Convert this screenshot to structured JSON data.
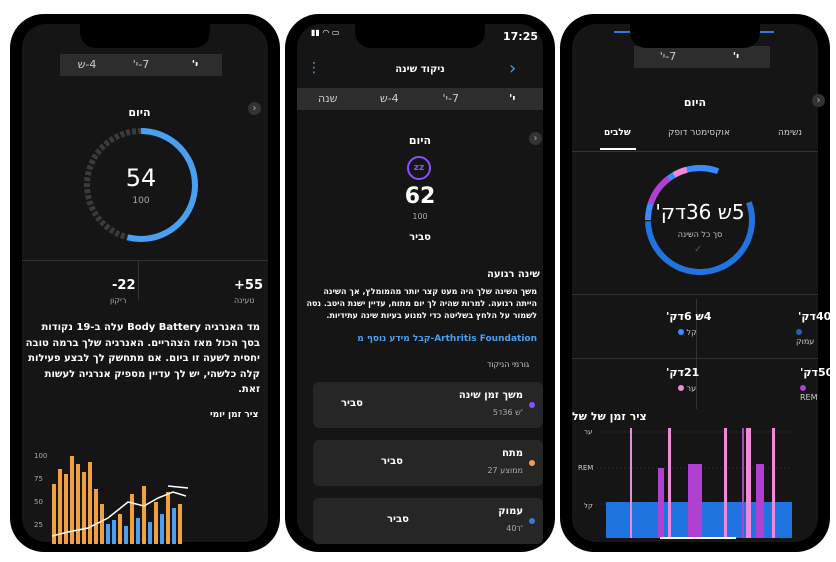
{
  "phone1": {
    "tabs": [
      {
        "label": "י'"
      },
      {
        "label": "7-י'"
      },
      {
        "label": "4-ש"
      }
    ],
    "title": "היום",
    "gauge": {
      "value": "54",
      "max": "100"
    },
    "charged": {
      "value": "+55",
      "label": "טעינה"
    },
    "drained": {
      "value": "-22",
      "label": "ריקון"
    },
    "description": "מד האנרגיה Body Battery עלה ב-19 נקודות בסך הכול מאז הצהריים. האנרגיה שלך ברמה טובה יחסית לשעה זו ביום. אם מתחשק לך לבצע פעילות קלה כלשהי, יש לך עדיין מספיק אנרגיה לעשות זאת.",
    "timeline_title": "ציר זמן יומי",
    "y_ticks": [
      "100",
      "75",
      "50",
      "25"
    ]
  },
  "phone2": {
    "status_time": "17:25",
    "header_title": "ניקוד שינה",
    "tabs": [
      {
        "label": "י'"
      },
      {
        "label": "7-י'"
      },
      {
        "label": "4-ש"
      },
      {
        "label": "שנה"
      }
    ],
    "title": "היום",
    "score": "62",
    "max": "100",
    "quality": "סביר",
    "insight_title": "שינה רגועה",
    "insight_body": "משך השינה שלך היה מעט קצר יותר מהמומלץ, אך השינה הייתה רגועה. למרות שהיה לך יום מתוח, עדיין ישנת היטב. נסה לשמור על הלחץ בשליטה כדי למנוע בעיות שינה עתידיות.",
    "link": "קבל מידע נוסף מ-Arthritis Foundation",
    "factors_title": "גורמי הניקוד",
    "factors": [
      {
        "name": "משך זמן שינה",
        "value": "5ש 36ד'",
        "rating": "סביר",
        "color": "#8a4fff"
      },
      {
        "name": "מתח",
        "value": "27 ממוצע",
        "rating": "סביר",
        "color": "#f0a040"
      },
      {
        "name": "עמוק",
        "value": "40ד'",
        "rating": "סביר",
        "color": "#3a78d8"
      }
    ]
  },
  "phone3": {
    "tabs": [
      {
        "label": "י'"
      },
      {
        "label": "7-י'"
      }
    ],
    "title": "היום",
    "subtabs": [
      {
        "label": "שלבים"
      },
      {
        "label": "אוקסימטר דופק"
      },
      {
        "label": "נשימה"
      }
    ],
    "total": "5ש 36דק'",
    "total_label": "סך כל השינה",
    "stages": [
      {
        "value": "4ש 6דק'",
        "label": "קל",
        "color": "#3a8bff"
      },
      {
        "value": "40דק'",
        "label": "עמוק",
        "color": "#1f5fbf"
      },
      {
        "value": "21דק'",
        "label": "ער",
        "color": "#f08ad8"
      },
      {
        "value": "50דק'",
        "label": "REM",
        "color": "#b040d0"
      }
    ],
    "timeline_title": "ציר זמן של של",
    "y_labels": [
      "ער",
      "REM",
      "קל"
    ]
  }
}
